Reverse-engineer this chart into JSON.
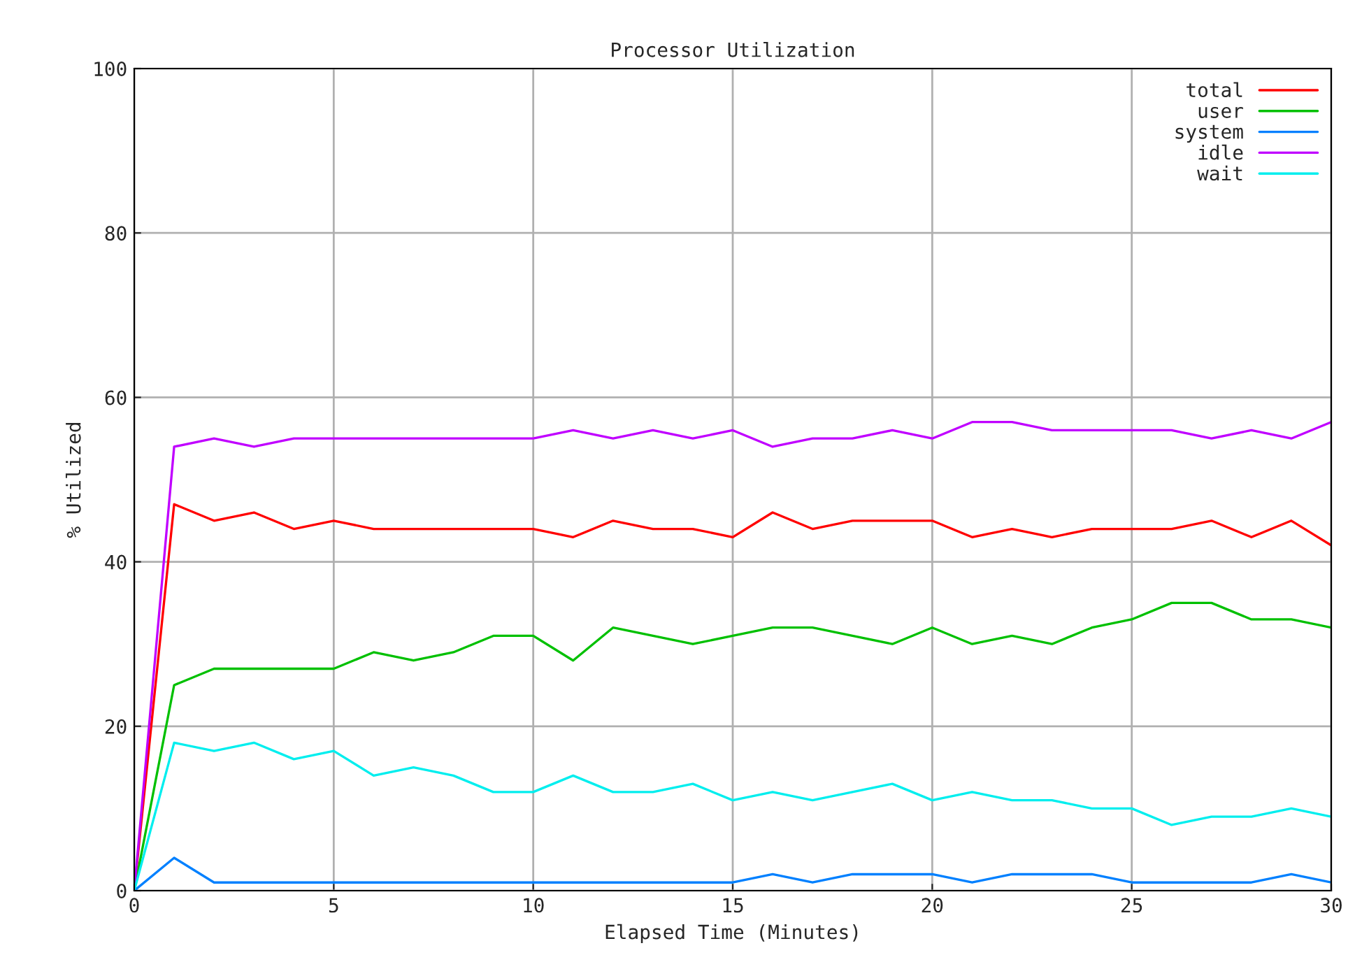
{
  "chart_data": {
    "type": "line",
    "title": "Processor Utilization",
    "xlabel": "Elapsed Time (Minutes)",
    "ylabel": "% Utilized",
    "x": [
      0,
      1,
      2,
      3,
      4,
      5,
      6,
      7,
      8,
      9,
      10,
      11,
      12,
      13,
      14,
      15,
      16,
      17,
      18,
      19,
      20,
      21,
      22,
      23,
      24,
      25,
      26,
      27,
      28,
      29,
      30
    ],
    "series": [
      {
        "name": "total",
        "color": "#ff0000",
        "values": [
          0,
          47,
          45,
          46,
          44,
          45,
          44,
          44,
          44,
          44,
          44,
          43,
          45,
          44,
          44,
          43,
          46,
          44,
          45,
          45,
          45,
          43,
          44,
          43,
          44,
          44,
          44,
          45,
          43,
          45,
          42
        ]
      },
      {
        "name": "user",
        "color": "#00c000",
        "values": [
          0,
          25,
          27,
          27,
          27,
          27,
          29,
          28,
          29,
          31,
          31,
          28,
          32,
          31,
          30,
          31,
          32,
          32,
          31,
          30,
          32,
          30,
          31,
          30,
          32,
          33,
          35,
          35,
          33,
          33,
          32
        ]
      },
      {
        "name": "system",
        "color": "#0080ff",
        "values": [
          0,
          4,
          1,
          1,
          1,
          1,
          1,
          1,
          1,
          1,
          1,
          1,
          1,
          1,
          1,
          1,
          2,
          1,
          2,
          2,
          2,
          1,
          2,
          2,
          2,
          1,
          1,
          1,
          1,
          2,
          1
        ]
      },
      {
        "name": "idle",
        "color": "#c000ff",
        "values": [
          0,
          54,
          55,
          54,
          55,
          55,
          55,
          55,
          55,
          55,
          55,
          56,
          55,
          56,
          55,
          56,
          54,
          55,
          55,
          56,
          55,
          57,
          57,
          56,
          56,
          56,
          56,
          55,
          56,
          55,
          57
        ]
      },
      {
        "name": "wait",
        "color": "#00eeee",
        "values": [
          0,
          18,
          17,
          18,
          16,
          17,
          14,
          15,
          14,
          12,
          12,
          14,
          12,
          12,
          13,
          11,
          12,
          11,
          12,
          13,
          11,
          12,
          11,
          11,
          10,
          10,
          8,
          9,
          9,
          10,
          9
        ]
      }
    ],
    "xlim": [
      0,
      30
    ],
    "xticks": [
      0,
      5,
      10,
      15,
      20,
      25,
      30
    ],
    "ylim": [
      0,
      100
    ],
    "yticks": [
      0,
      20,
      40,
      60,
      80,
      100
    ],
    "grid": true,
    "legend": "top right"
  }
}
